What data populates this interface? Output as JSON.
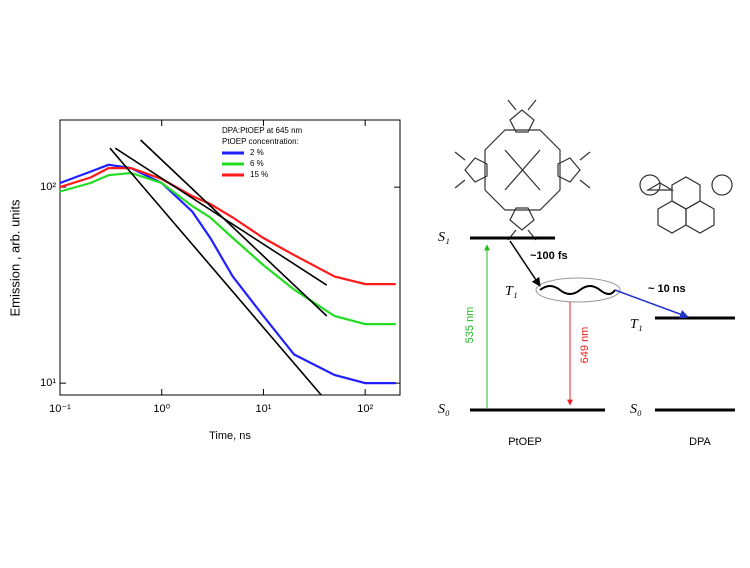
{
  "chart_data": {
    "type": "line",
    "log_x": true,
    "log_y": true,
    "xlabel": "Time, ns",
    "ylabel": "Emission , arb. units",
    "legend_title": [
      "DPA:PtOEP at 645 nm",
      "PtOEP concentration:"
    ],
    "x": [
      0.1,
      0.2,
      0.3,
      0.5,
      1,
      2,
      3,
      5,
      10,
      20,
      50,
      100,
      200
    ],
    "series": [
      {
        "name": "2 %",
        "color": "#1f1fff",
        "values": [
          105,
          120,
          130,
          125,
          105,
          75,
          55,
          35,
          22,
          14,
          11,
          10,
          10
        ]
      },
      {
        "name": "6 %",
        "color": "#22dd22",
        "values": [
          95,
          105,
          115,
          118,
          105,
          80,
          70,
          55,
          40,
          30,
          22,
          20,
          20
        ]
      },
      {
        "name": "15 %",
        "color": "#ff1a1a",
        "values": [
          100,
          112,
          125,
          125,
          110,
          90,
          82,
          70,
          55,
          45,
          35,
          32,
          32
        ]
      },
      {
        "color": "#000000",
        "x": [
          0.31,
          37
        ],
        "values": [
          158,
          8.7
        ]
      },
      {
        "color": "#000000",
        "x": [
          0.62,
          42
        ],
        "values": [
          174,
          22
        ]
      },
      {
        "color": "#000000",
        "x": [
          0.35,
          42
        ],
        "values": [
          158,
          31.6
        ]
      }
    ],
    "xlim": [
      0.1,
      220
    ],
    "ylim": [
      8.7,
      220
    ],
    "xticks": [
      {
        "value": 0.1,
        "label": "10⁻¹"
      },
      {
        "value": 1,
        "label": "10⁰"
      },
      {
        "value": 10,
        "label": "10¹"
      },
      {
        "value": 100,
        "label": "10²"
      }
    ],
    "yticks": [
      {
        "value": 10,
        "label": "10¹"
      },
      {
        "value": 100,
        "label": "10²"
      }
    ]
  },
  "diagram": {
    "ptoep": {
      "s1": "S₁",
      "t1": "T₁",
      "s0": "S₀",
      "absorption": "535 nm",
      "emission": "649 nm",
      "isc": "~100 fs",
      "label": "PtOEP"
    },
    "transfer": "~ 10 ns",
    "dpa": {
      "t1": "T₁",
      "s0": "S₀",
      "label": "DPA"
    }
  }
}
